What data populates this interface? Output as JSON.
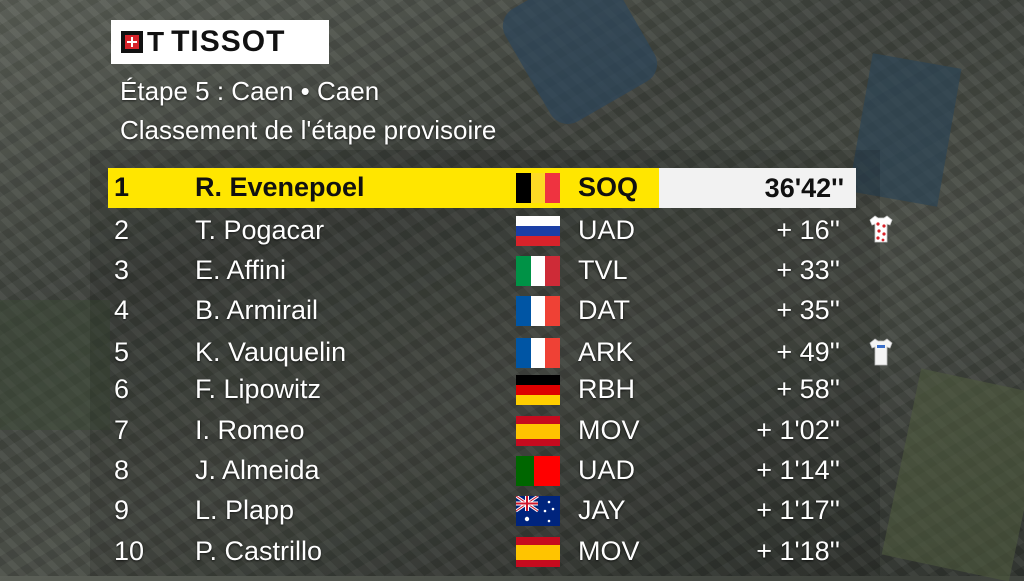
{
  "brand": "TISSOT",
  "stage": {
    "title": "Étape 5 : Caen • Caen",
    "subtitle": "Classement de l'étape provisoire"
  },
  "standings": [
    {
      "rank": "1",
      "name": "R. Evenepoel",
      "team": "SOQ",
      "time": "36'42''",
      "flag": "belgium"
    },
    {
      "rank": "2",
      "name": "T. Pogacar",
      "team": "UAD",
      "time": "+ 16''",
      "flag": "slovenia",
      "jersey": "polka-dot-jersey"
    },
    {
      "rank": "3",
      "name": "E. Affini",
      "team": "TVL",
      "time": "+ 33''",
      "flag": "italy"
    },
    {
      "rank": "4",
      "name": "B. Armirail",
      "team": "DAT",
      "time": "+ 35''",
      "flag": "france"
    },
    {
      "rank": "5",
      "name": "K. Vauquelin",
      "team": "ARK",
      "time": "+ 49''",
      "flag": "france",
      "jersey": "white-jersey"
    },
    {
      "rank": "6",
      "name": "F. Lipowitz",
      "team": "RBH",
      "time": "+ 58''",
      "flag": "germany"
    },
    {
      "rank": "7",
      "name": "I. Romeo",
      "team": "MOV",
      "time": "+ 1'02''",
      "flag": "spain"
    },
    {
      "rank": "8",
      "name": "J. Almeida",
      "team": "UAD",
      "time": "+ 1'14''",
      "flag": "portugal"
    },
    {
      "rank": "9",
      "name": "L. Plapp",
      "team": "JAY",
      "time": "+ 1'17''",
      "flag": "australia"
    },
    {
      "rank": "10",
      "name": "P. Castrillo",
      "team": "MOV",
      "time": "+ 1'18''",
      "flag": "spain"
    }
  ],
  "colors": {
    "leader_highlight": "#ffe600",
    "leader_time_bg": "#f2f2f2"
  }
}
